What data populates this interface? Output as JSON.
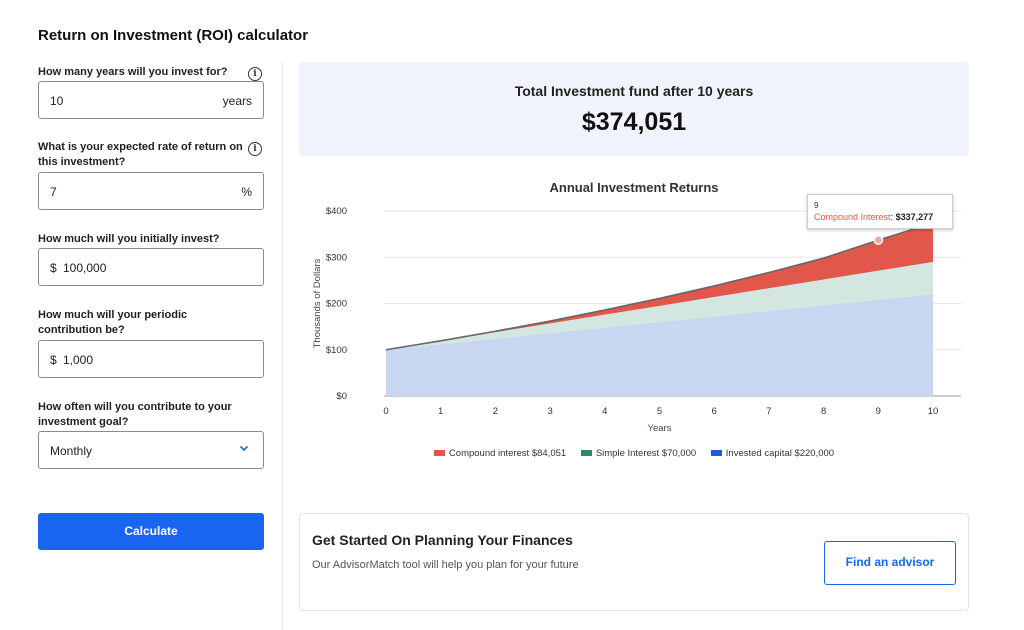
{
  "page_title": "Return on Investment (ROI) calculator",
  "form": {
    "years": {
      "label": "How many years will you invest for?",
      "value": "10",
      "suffix": "years"
    },
    "rate": {
      "label": "What is your expected rate of return on this investment?",
      "value": "7",
      "suffix": "%"
    },
    "initial": {
      "label": "How much will you initially invest?",
      "prefix": "$",
      "value": "100,000"
    },
    "contribution": {
      "label": "How much will your periodic contribution be?",
      "prefix": "$",
      "value": "1,000"
    },
    "frequency": {
      "label": "How often will you contribute to your investment goal?",
      "value": "Monthly",
      "icon": "chevron-down-icon"
    },
    "info_icon_glyph": "i",
    "calculate_label": "Calculate"
  },
  "total": {
    "label": "Total Investment fund after 10 years",
    "value": "$374,051"
  },
  "chart_data": {
    "type": "area",
    "title": "Annual Investment Returns",
    "xlabel": "Years",
    "ylabel": "Thousands of Dollars",
    "x": [
      0,
      1,
      2,
      3,
      4,
      5,
      6,
      7,
      8,
      9,
      10
    ],
    "ylim": [
      0,
      400
    ],
    "y_ticks": [
      "$0",
      "$100",
      "$200",
      "$300",
      "$400"
    ],
    "stacked": true,
    "grid": true,
    "legend_position": "bottom",
    "series": [
      {
        "name": "Invested capital",
        "legend": "Invested capital $220,000",
        "color": "#c9d6f1",
        "values": [
          100,
          112,
          124,
          136,
          148,
          160,
          172,
          184,
          196,
          208,
          220
        ]
      },
      {
        "name": "Simple Interest",
        "legend": "Simple Interest $70,000",
        "color": "#d3e6df",
        "values": [
          0,
          7,
          14,
          21,
          28,
          35,
          42,
          49,
          56,
          63,
          70
        ]
      },
      {
        "name": "Compound Interest",
        "legend": "Compound interest $84,051",
        "color": "#e2574c",
        "values": [
          0,
          0.4,
          2,
          5,
          10,
          16,
          24,
          34,
          46,
          66,
          84
        ]
      }
    ],
    "total_line_color": "#666666",
    "legend_swatch_colors": [
      "#e2574c",
      "#2d8a68",
      "#1d5bd6"
    ],
    "tooltip": {
      "year": "9",
      "series": "Compound Interest",
      "value": "$337,277",
      "x": 9,
      "y": 337.277
    }
  },
  "cta": {
    "title": "Get Started On Planning Your Finances",
    "subtitle": "Our AdvisorMatch tool will help you plan for your future",
    "button_label": "Find an advisor"
  }
}
